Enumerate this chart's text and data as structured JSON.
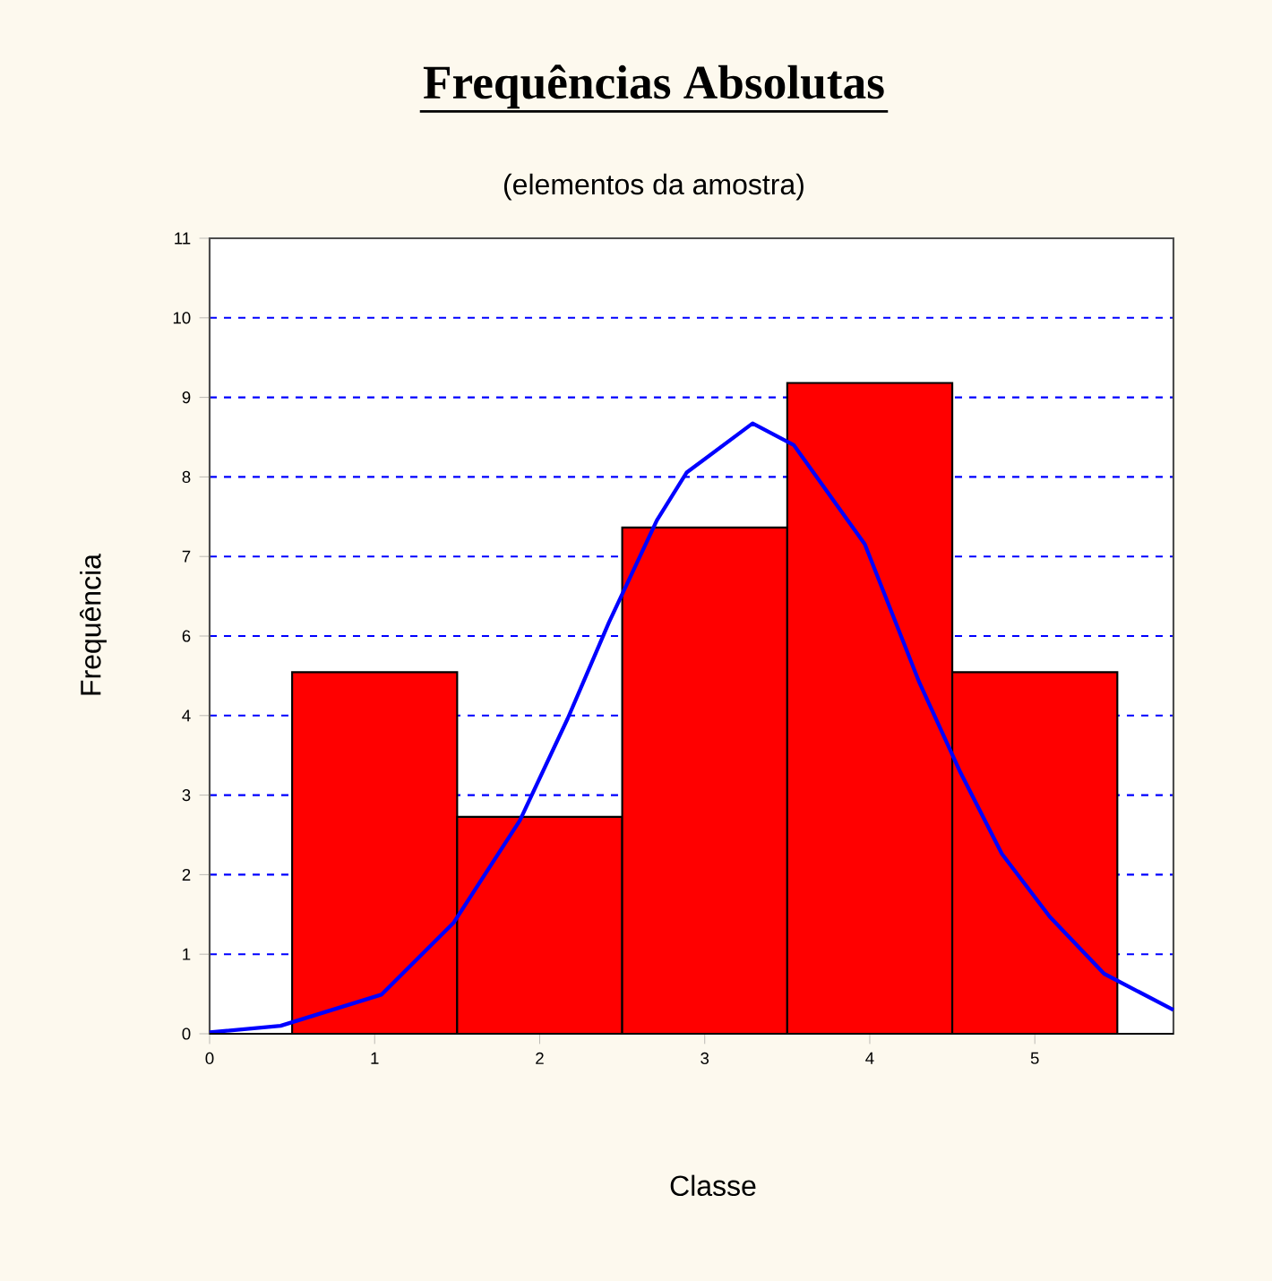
{
  "chart_data": {
    "type": "histogram",
    "title": "Frequências Absolutas",
    "subtitle": "(elementos da amostra)",
    "xlabel": "Classe",
    "ylabel": "Frequência",
    "bins": [
      0.5,
      1.5,
      2.5,
      3.5,
      4.5,
      5.5
    ],
    "values": [
      5,
      3,
      7,
      9,
      5
    ],
    "color": "#ff0000",
    "series": [
      {
        "type": "line",
        "color": "#0000ff",
        "x": [
          0,
          0.43,
          1.04,
          1.48,
          1.88,
          2.17,
          2.42,
          2.71,
          2.89,
          3.29,
          3.54,
          3.97,
          4.3,
          4.55,
          4.8,
          5.09,
          5.42,
          5.84
        ],
        "values": [
          0.02,
          0.11,
          0.54,
          1.54,
          2.95,
          4.36,
          5.69,
          7.1,
          7.76,
          8.44,
          8.14,
          6.77,
          4.86,
          3.61,
          2.49,
          1.62,
          0.83,
          0.33
        ]
      }
    ],
    "xlim": [
      0,
      5.84
    ],
    "xticks": [
      0,
      1,
      2,
      3,
      4,
      5
    ],
    "ylim": [
      0,
      11
    ],
    "yticks": [
      0,
      {
        "value": 1.1,
        "label": "1"
      },
      {
        "value": 2.2,
        "label": "2"
      },
      {
        "value": 3.3,
        "label": "3"
      },
      {
        "value": 4.4,
        "label": "4"
      },
      {
        "value": 5.5,
        "label": "6"
      },
      {
        "value": 6.6,
        "label": "7"
      },
      {
        "value": 7.7,
        "label": "8"
      },
      {
        "value": 8.8,
        "label": "9"
      },
      {
        "value": 9.9,
        "label": "10"
      },
      11
    ],
    "grid": "y",
    "marker": "none",
    "line_style": "solid"
  }
}
